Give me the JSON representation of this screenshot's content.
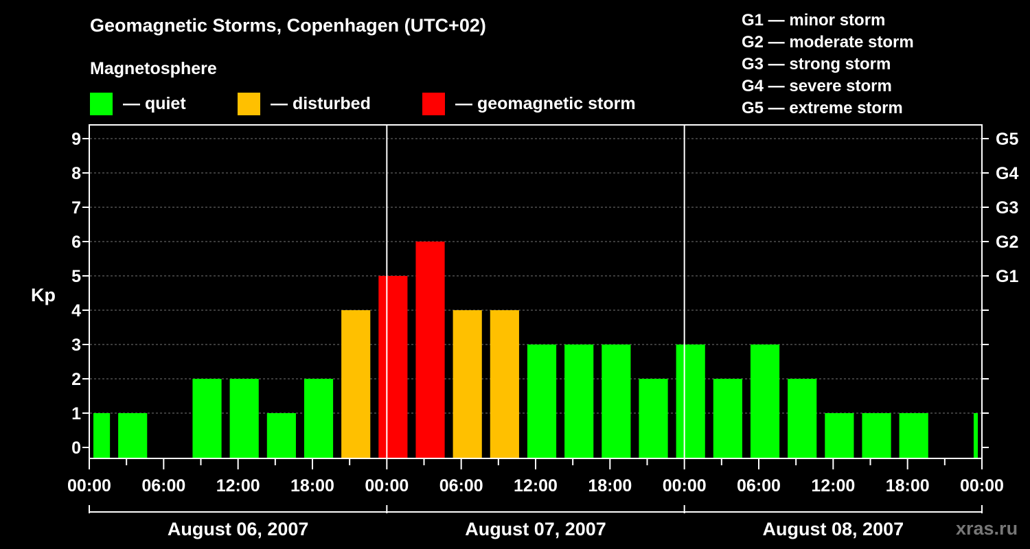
{
  "title": "Geomagnetic Storms, Copenhagen (UTC+02)",
  "subtitle": "Magnetosphere",
  "legend": [
    {
      "label": "— quiet",
      "color": "#00ff00"
    },
    {
      "label": "— disturbed",
      "color": "#ffc000"
    },
    {
      "label": "— geomagnetic storm",
      "color": "#ff0000"
    }
  ],
  "storm_levels": [
    "G1 — minor storm",
    "G2 — moderate storm",
    "G3 — strong storm",
    "G4 — severe storm",
    "G5 — extreme storm"
  ],
  "watermark": "xras.ru",
  "colors": {
    "quiet": "#00ff00",
    "disturbed": "#ffc000",
    "storm": "#ff0000"
  },
  "chart_data": {
    "type": "bar",
    "ylabel": "Kp",
    "ylim": [
      0,
      9
    ],
    "yticks": [
      "0",
      "1",
      "2",
      "3",
      "4",
      "5",
      "6",
      "7",
      "8",
      "9"
    ],
    "right_ticks": [
      {
        "kp": 5,
        "label": "G1"
      },
      {
        "kp": 6,
        "label": "G2"
      },
      {
        "kp": 7,
        "label": "G3"
      },
      {
        "kp": 8,
        "label": "G4"
      },
      {
        "kp": 9,
        "label": "G5"
      }
    ],
    "xticks": [
      "00:00",
      "06:00",
      "12:00",
      "18:00",
      "00:00",
      "06:00",
      "12:00",
      "18:00",
      "00:00",
      "06:00",
      "12:00",
      "18:00",
      "00:00"
    ],
    "days": [
      "August 06, 2007",
      "August 07, 2007",
      "August 08, 2007"
    ],
    "interval_hours": 3,
    "first_hour": 0,
    "first_width_hours": 2,
    "values": [
      1,
      1,
      0,
      2,
      2,
      1,
      2,
      4,
      5,
      6,
      4,
      4,
      3,
      3,
      3,
      2,
      3,
      2,
      3,
      2,
      1,
      1,
      1,
      0,
      1
    ],
    "levels": [
      "quiet",
      "quiet",
      "quiet",
      "quiet",
      "quiet",
      "quiet",
      "quiet",
      "disturbed",
      "storm",
      "storm",
      "disturbed",
      "disturbed",
      "quiet",
      "quiet",
      "quiet",
      "quiet",
      "quiet",
      "quiet",
      "quiet",
      "quiet",
      "quiet",
      "quiet",
      "quiet",
      "quiet",
      "quiet"
    ]
  }
}
